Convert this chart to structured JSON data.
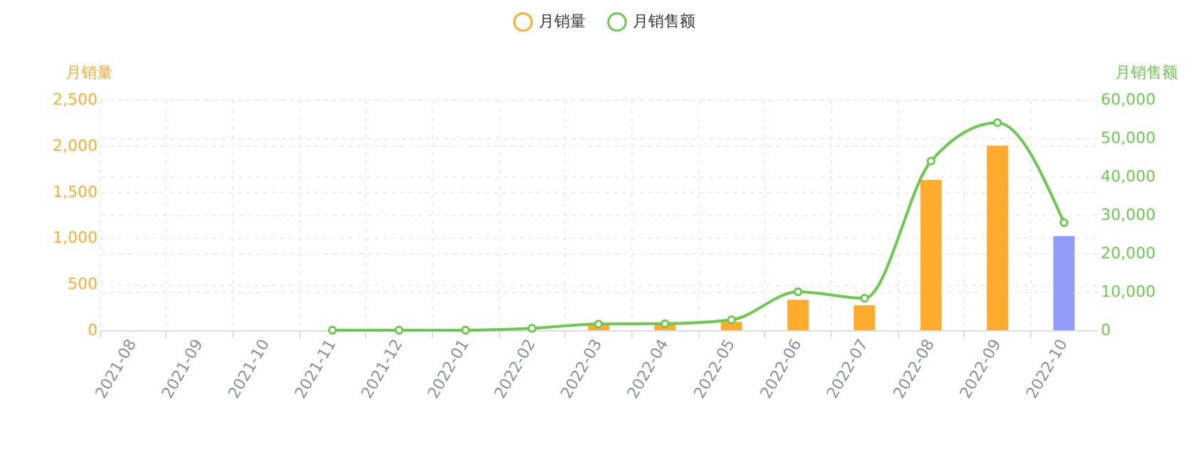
{
  "chart_data": {
    "type": "bar",
    "categories": [
      "2021-08",
      "2021-09",
      "2021-10",
      "2021-11",
      "2021-12",
      "2022-01",
      "2022-02",
      "2022-03",
      "2022-04",
      "2022-05",
      "2022-06",
      "2022-07",
      "2022-08",
      "2022-09",
      "2022-10"
    ],
    "series": [
      {
        "name": "月销量",
        "color": "#ffab2e",
        "colors": [
          "#ffab2e",
          "#ffab2e",
          "#ffab2e",
          "#ffab2e",
          "#ffab2e",
          "#ffab2e",
          "#ffab2e",
          "#ffab2e",
          "#ffab2e",
          "#ffab2e",
          "#ffab2e",
          "#ffab2e",
          "#ffab2e",
          "#ffab2e",
          "#909cf8"
        ],
        "values": [
          null,
          null,
          null,
          null,
          null,
          null,
          null,
          60,
          60,
          90,
          330,
          270,
          1630,
          2000,
          1020
        ]
      },
      {
        "name": "月销售额",
        "type": "line",
        "axis": "y2",
        "color": "#6cc84f",
        "values": [
          null,
          null,
          null,
          0,
          0,
          0,
          500,
          1600,
          1700,
          2700,
          10000,
          8300,
          44000,
          54000,
          28000
        ]
      }
    ],
    "ylabel": "月销量",
    "y2label": "月销售额",
    "ylim": [
      0,
      2500
    ],
    "yticks": [
      0,
      {
        "value": 500,
        "label": "500"
      },
      {
        "value": 1000,
        "label": "1,000"
      },
      {
        "value": 1500,
        "label": "1,500"
      },
      {
        "value": 2000,
        "label": "2,000"
      },
      {
        "value": 2500,
        "label": "2,500"
      }
    ],
    "y2lim": [
      0,
      60000
    ],
    "y2ticks": [
      0,
      {
        "value": 10000,
        "label": "10,000"
      },
      {
        "value": 20000,
        "label": "20,000"
      },
      {
        "value": 30000,
        "label": "30,000"
      },
      {
        "value": 40000,
        "label": "40,000"
      },
      {
        "value": 50000,
        "label": "50,000"
      },
      {
        "value": 60000,
        "label": "60,000"
      }
    ],
    "grid": true,
    "legend": "top",
    "marker": "circle",
    "line_style": "solid"
  }
}
